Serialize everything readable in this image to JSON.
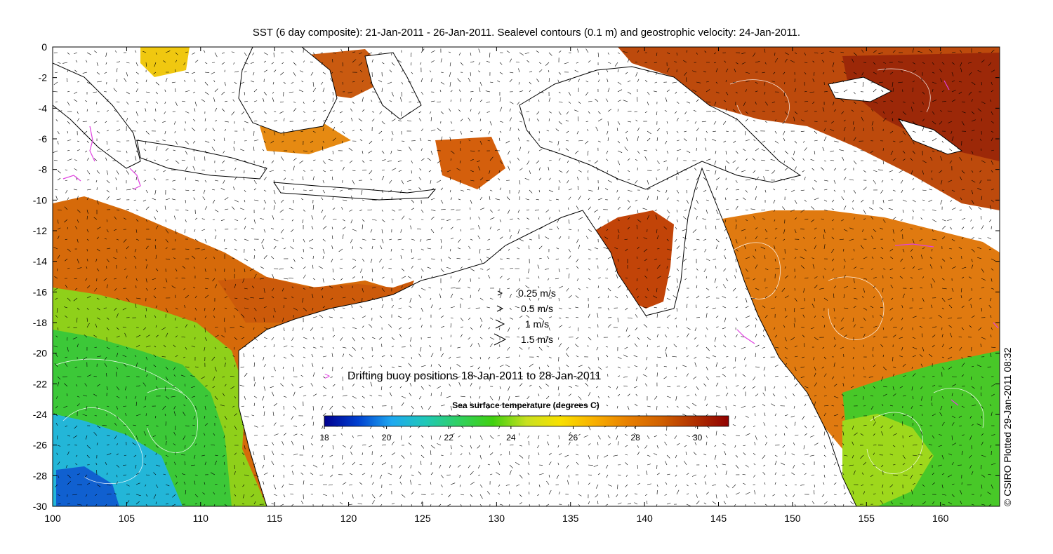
{
  "title": "SST (6 day composite): 21-Jan-2011 - 26-Jan-2011. Sealevel contours (0.1 m) and geostrophic velocity: 24-Jan-2011.",
  "credit": "© CSIRO Plotted 29-Jan-2011 08:32",
  "axes": {
    "x_ticks": [
      "100",
      "105",
      "110",
      "115",
      "120",
      "125",
      "130",
      "135",
      "140",
      "145",
      "150",
      "155",
      "160"
    ],
    "y_ticks": [
      "0",
      "-2",
      "-4",
      "-6",
      "-8",
      "-10",
      "-12",
      "-14",
      "-16",
      "-18",
      "-20",
      "-22",
      "-24",
      "-26",
      "-28",
      "-30"
    ],
    "xlim": [
      100,
      164
    ],
    "ylim": [
      -30,
      0
    ]
  },
  "velocity_legend": [
    {
      "label": "0.25 m/s",
      "speed": 0.25
    },
    {
      "label": "0.5 m/s",
      "speed": 0.5
    },
    {
      "label": "1 m/s",
      "speed": 1
    },
    {
      "label": "1.5 m/s",
      "speed": 1.5
    }
  ],
  "buoy_legend": {
    "symbol": ">",
    "label": "Drifting buoy positions 18-Jan-2011 to 28-Jan-2011",
    "color": "#e040e0"
  },
  "colorbar": {
    "title": "Sea surface temperature (degrees C)",
    "min": 18,
    "max": 31,
    "ticks": [
      "18",
      "20",
      "22",
      "24",
      "26",
      "28",
      "30"
    ],
    "colors": [
      "#00008f",
      "#0040d0",
      "#1ea8f0",
      "#20c8b8",
      "#30d060",
      "#40d010",
      "#c8e020",
      "#f8e000",
      "#f8b000",
      "#e88000",
      "#d06000",
      "#b03000",
      "#900000"
    ]
  },
  "land_color": "#ffffff",
  "coast_color": "#000000",
  "contour_color": "#ffffff"
}
